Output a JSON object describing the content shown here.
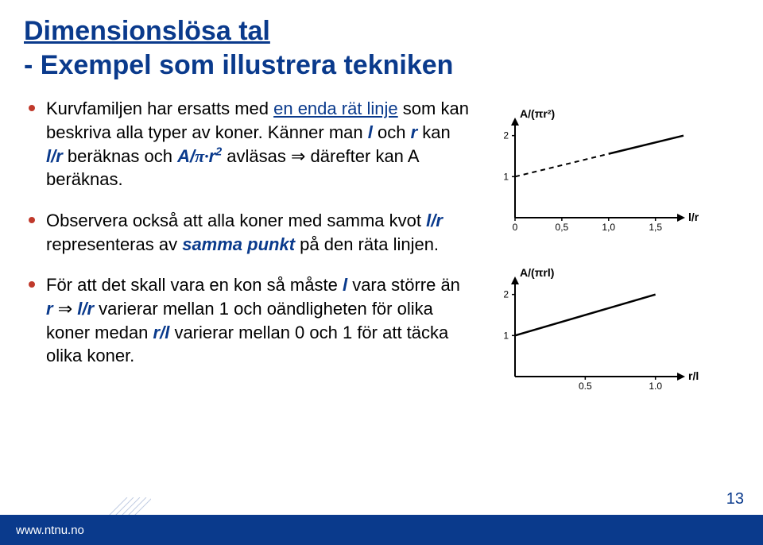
{
  "title": "Dimensionslösa tal",
  "subtitle": "- Exempel som illustrera tekniken",
  "bullets": {
    "b1_pre": "Kurvfamiljen har ersatts med ",
    "b1_mid": "en enda rät linje",
    "b1_post": " som kan beskriva alla typer av koner. Känner man ",
    "b1_l": "l",
    "b1_and": " och ",
    "b1_r": "r",
    "b1_kan": " kan ",
    "b1_lr": "l/r",
    "b1_calc": " beräknas och ",
    "b1_A": "A/",
    "b1_pi": "π·",
    "b1_r2a": "r",
    "b1_r2b": "2",
    "b1_avl": " avläsas ",
    "b1_arrow": "⇒",
    "b1_end": " därefter kan A beräknas.",
    "b2_pre": "Observera också att alla koner med samma kvot ",
    "b2_lr": "l/r",
    "b2_mid": " representeras av ",
    "b2_same": "samma punkt",
    "b2_end": " på den räta linjen.",
    "b3_pre": "För att det skall vara en kon så måste ",
    "b3_l": "l",
    "b3_mid1": " vara större än ",
    "b3_r": "r",
    "b3_sp": " ",
    "b3_arrow": "⇒",
    "b3_spc": "  ",
    "b3_lr": "l/r",
    "b3_mid2": "  varierar mellan 1 och oändligheten för olika koner medan ",
    "b3_rl": "r/l",
    "b3_end": " varierar mellan 0 och 1 för att täcka olika koner."
  },
  "chart1": {
    "ylabel": "A/(πr²)",
    "xlabel": "l/r",
    "xticks": [
      "0",
      "0,5",
      "1,0",
      "1,5"
    ],
    "yticks": [
      "1",
      "2"
    ],
    "xlim": [
      0,
      1.8
    ],
    "ylim": [
      0,
      2.4
    ],
    "line": {
      "x1": 0,
      "y1": 1,
      "x2": 1.8,
      "y2": 2.0
    },
    "line_color": "#000000",
    "solid_from_x": 1.0,
    "background": "#ffffff"
  },
  "chart2": {
    "ylabel": "A/(πrl)",
    "xlabel": "r/l",
    "xticks": [
      "0.5",
      "1.0"
    ],
    "yticks": [
      "1",
      "2"
    ],
    "xlim": [
      0,
      1.2
    ],
    "ylim": [
      0,
      2.4
    ],
    "line": {
      "x1": 0,
      "y1": 1,
      "x2": 1.0,
      "y2": 2.0
    },
    "line_color": "#000000",
    "background": "#ffffff"
  },
  "footer": "www.ntnu.no",
  "pagenum": "13",
  "colors": {
    "navy": "#0a3a8c",
    "bullet": "#c0392b",
    "text": "#000000",
    "bg": "#ffffff"
  }
}
